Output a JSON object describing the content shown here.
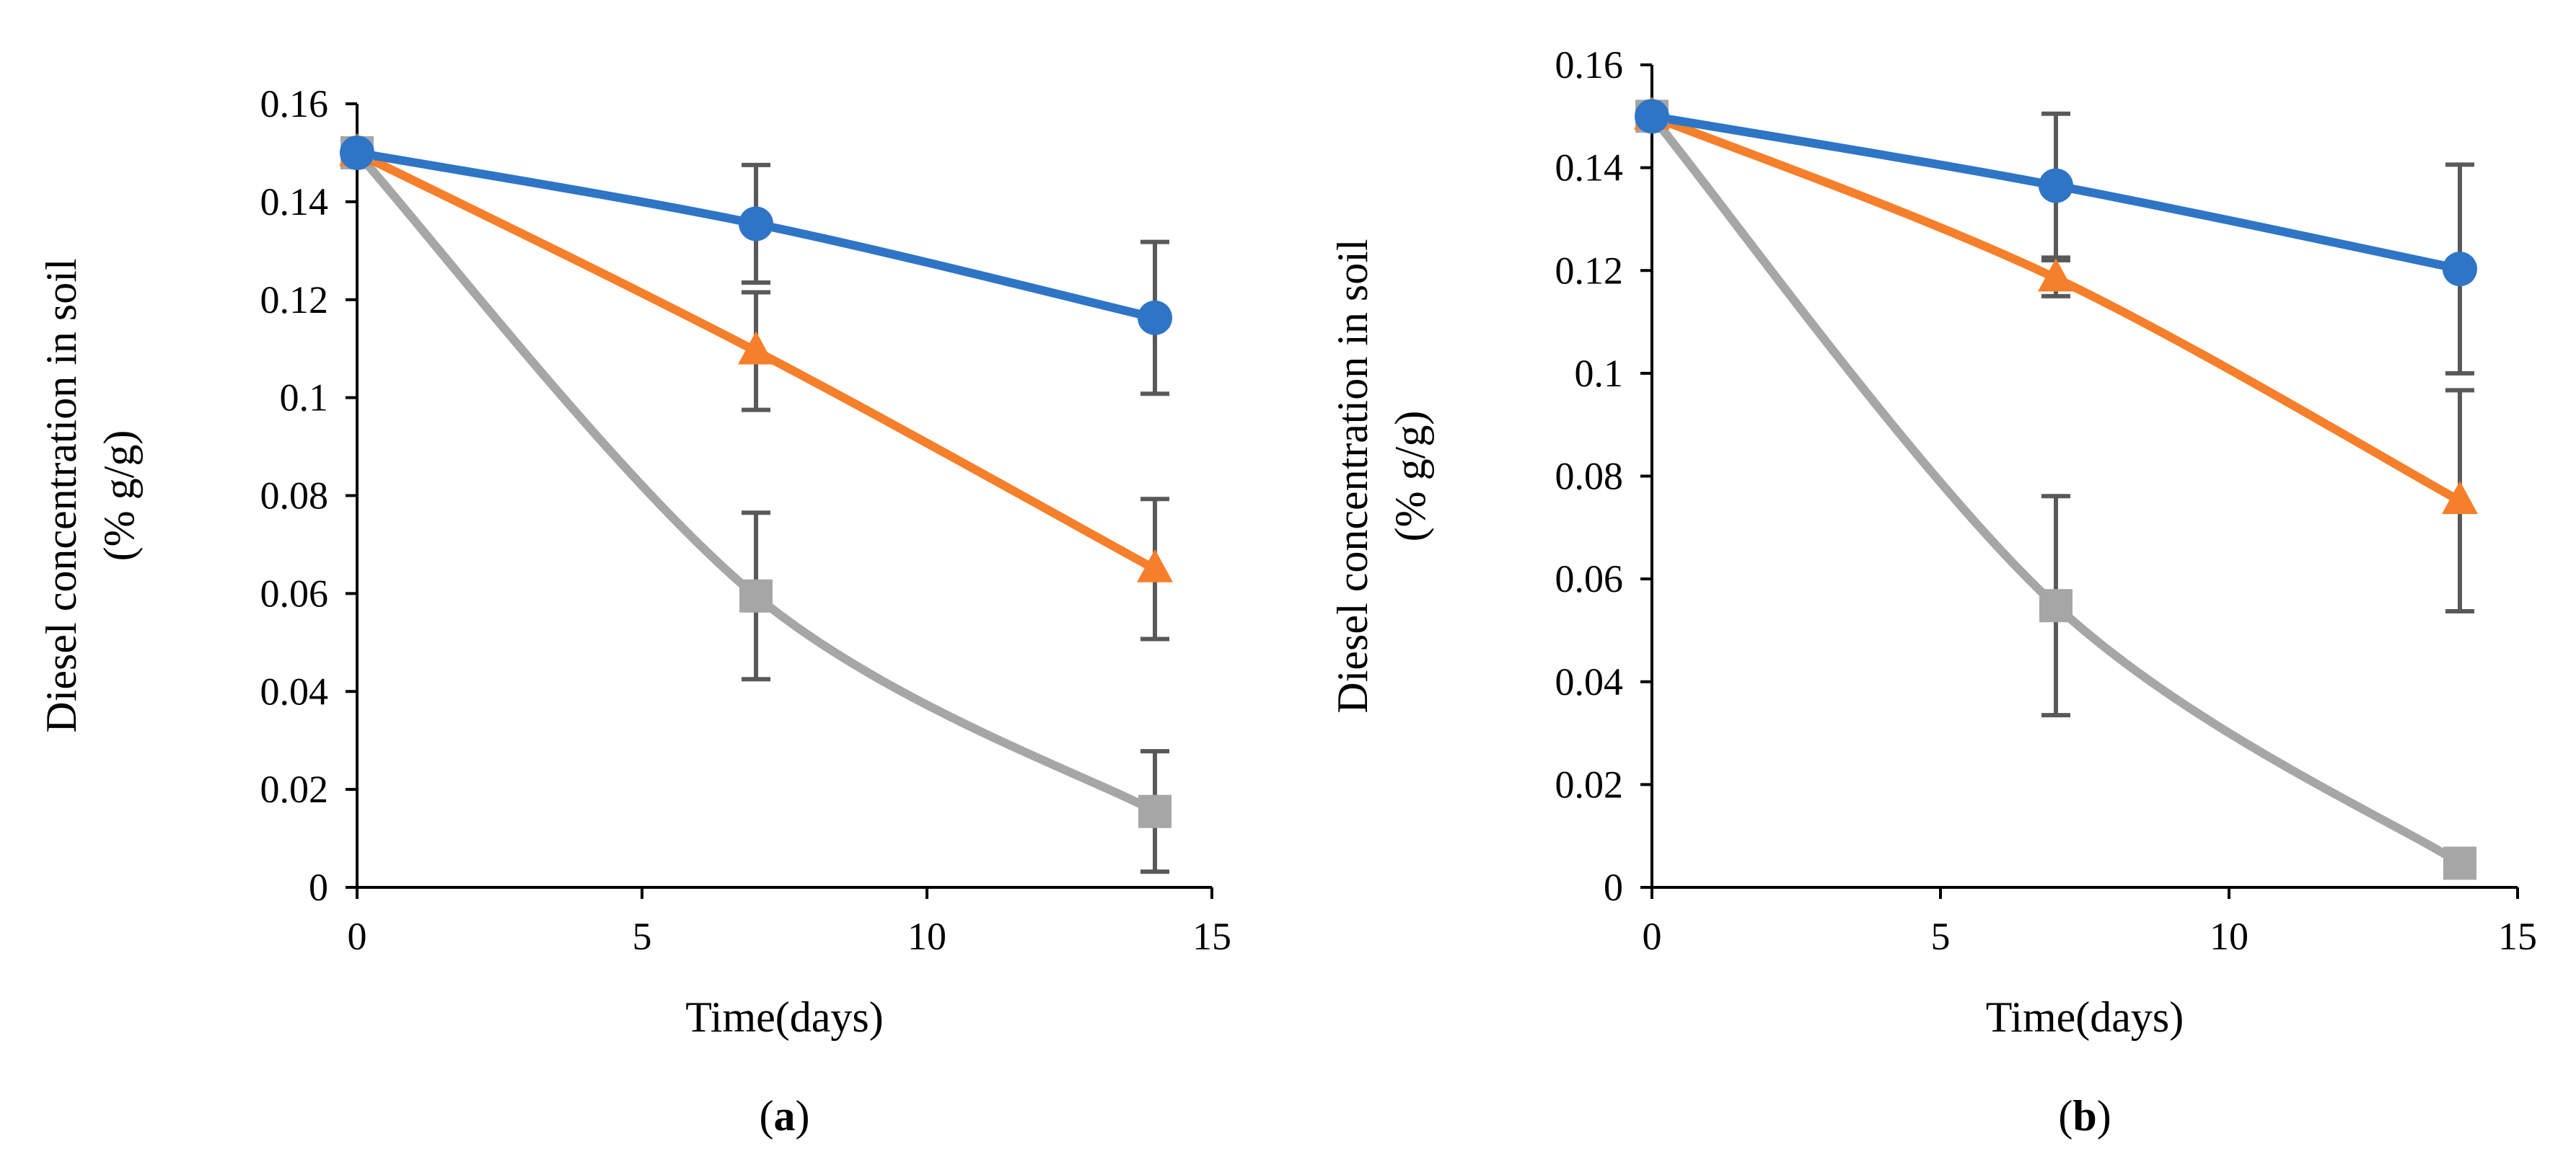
{
  "colors": {
    "series_blue": "#2e75c6",
    "series_orange": "#f57f2a",
    "series_gray": "#a6a6a6",
    "error_bar": "#595959",
    "axis": "#000000"
  },
  "chart_data": [
    {
      "type": "line",
      "panel_label_open": "(",
      "panel_label_letter": "a",
      "panel_label_close": ")",
      "xlabel": "Time(days)",
      "ylabel_line1": "Diesel concentration in soil",
      "ylabel_line2": "(% g/g)",
      "xlim": [
        0,
        15
      ],
      "ylim": [
        0,
        0.16
      ],
      "xticks": [
        0,
        5,
        10,
        15
      ],
      "yticks": [
        0,
        0.02,
        0.04,
        0.06,
        0.08,
        0.1,
        0.12,
        0.14,
        0.16
      ],
      "xtick_labels": [
        "0",
        "5",
        "10",
        "15"
      ],
      "ytick_labels": [
        "0",
        "0.02",
        "0.04",
        "0.06",
        "0.08",
        "0.1",
        "0.12",
        "0.14",
        "0.16"
      ],
      "x": [
        0,
        7,
        14
      ],
      "series": [
        {
          "name": "circle",
          "marker": "circle",
          "color": "#2e75c6",
          "values": [
            0.15,
            0.1355,
            0.1163
          ],
          "errors": [
            0,
            0.012,
            0.0155
          ]
        },
        {
          "name": "triangle",
          "marker": "triangle",
          "color": "#f57f2a",
          "values": [
            0.15,
            0.1095,
            0.065
          ],
          "errors": [
            0,
            0.012,
            0.0143
          ]
        },
        {
          "name": "square",
          "marker": "square",
          "color": "#a6a6a6",
          "values": [
            0.15,
            0.0595,
            0.0155
          ],
          "errors": [
            0,
            0.017,
            0.0123
          ]
        }
      ]
    },
    {
      "type": "line",
      "panel_label_open": "(",
      "panel_label_letter": "b",
      "panel_label_close": ")",
      "xlabel": "Time(days)",
      "ylabel_line1": "Diesel concentration in soil",
      "ylabel_line2": "(% g/g)",
      "xlim": [
        0,
        15
      ],
      "ylim": [
        0,
        0.16
      ],
      "xticks": [
        0,
        5,
        10,
        15
      ],
      "yticks": [
        0,
        0.02,
        0.04,
        0.06,
        0.08,
        0.1,
        0.12,
        0.14,
        0.16
      ],
      "xtick_labels": [
        "0",
        "5",
        "10",
        "15"
      ],
      "ytick_labels": [
        "0",
        "0.02",
        "0.04",
        "0.06",
        "0.08",
        "0.1",
        "0.12",
        "0.14",
        "0.16"
      ],
      "x": [
        0,
        7,
        14
      ],
      "series": [
        {
          "name": "circle",
          "marker": "circle",
          "color": "#2e75c6",
          "values": [
            0.15,
            0.1365,
            0.1203
          ],
          "errors": [
            0,
            0.014,
            0.0203
          ]
        },
        {
          "name": "triangle",
          "marker": "triangle",
          "color": "#f57f2a",
          "values": [
            0.15,
            0.1185,
            0.0752
          ],
          "errors": [
            0,
            0.0035,
            0.0215
          ]
        },
        {
          "name": "square",
          "marker": "square",
          "color": "#a6a6a6",
          "values": [
            0.15,
            0.0548,
            0.0047
          ],
          "errors": [
            0,
            0.0213,
            0
          ]
        }
      ]
    }
  ]
}
